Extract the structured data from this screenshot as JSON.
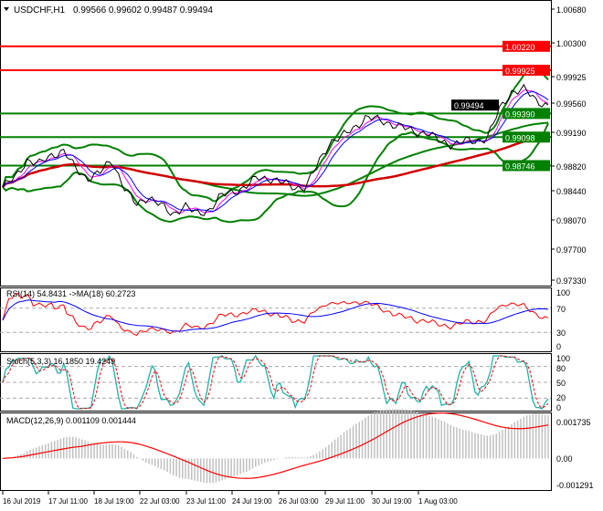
{
  "header": {
    "symbol": "USDCHF,H1",
    "ohlc": "0.99566 0.99602 0.99487 0.99494"
  },
  "colors": {
    "resistance": "#ff0000",
    "support": "#008000",
    "price_tag": "#000000",
    "bollinger": "#008000",
    "rsi": "#ff0000",
    "rsi_ma": "#0000ff",
    "stoch_main": "#20b2aa",
    "stoch_signal": "#ff0000",
    "macd_hist": "#c0c0c0",
    "macd_signal": "#ff0000"
  },
  "chart_data": [
    {
      "type": "line",
      "title": "USDCHF,H1",
      "ylim": [
        0.9733,
        1.0068
      ],
      "y_ticks": [
        "1.00680",
        "1.00300",
        "0.99925",
        "0.99560",
        "0.99190",
        "0.98820",
        "0.98440",
        "0.98070",
        "0.97700",
        "0.97330"
      ],
      "x_ticks": [
        "16 Jul 2019",
        "17 Jul 11:00",
        "18 Jul 19:00",
        "22 Jul 03:00",
        "23 Jul 11:00",
        "24 Jul 19:00",
        "26 Jul 03:00",
        "29 Jul 11:00",
        "30 Jul 19:00",
        "1 Aug 03:00"
      ],
      "close": [
        0.9848,
        0.98593,
        0.98819,
        0.98762,
        0.98875,
        0.98932,
        0.98706,
        0.98593,
        0.9865,
        0.98819,
        0.9848,
        0.98255,
        0.98368,
        0.98255,
        0.98142,
        0.98255,
        0.98142,
        0.98198,
        0.98368,
        0.98424,
        0.9848,
        0.98593,
        0.98593,
        0.98537,
        0.9848,
        0.9848,
        0.98762,
        0.99044,
        0.99101,
        0.99214,
        0.99349,
        0.99304,
        0.9927,
        0.99214,
        0.99157,
        0.99157,
        0.99044,
        0.99011,
        0.99044,
        0.99044,
        0.99101,
        0.99439,
        0.99665,
        0.99687,
        0.99552,
        0.99494
      ],
      "levels": [
        {
          "value": "1.00220",
          "kind": "resistance"
        },
        {
          "value": "0.99925",
          "kind": "resistance"
        },
        {
          "value": "0.99390",
          "kind": "support"
        },
        {
          "value": "0.99098",
          "kind": "support"
        },
        {
          "value": "0.98746",
          "kind": "support"
        }
      ],
      "current_price": "0.99494"
    },
    {
      "type": "line",
      "title": "RSI(14) 54.8431   ->MA(18) 60.2723",
      "ylim": [
        0,
        100
      ],
      "y_ticks": [
        "100",
        "70",
        "30",
        "0"
      ]
    },
    {
      "type": "line",
      "title": "Stoch(5,3,3) 16.1850 19.4249",
      "ylim": [
        0,
        100
      ],
      "y_ticks": [
        "100",
        "80",
        "50",
        "20",
        "0"
      ]
    },
    {
      "type": "bar",
      "title": "MACD(12,26,9) 0.001109 0.001444",
      "ylim": [
        -0.001291,
        0.001735
      ],
      "y_ticks": [
        "0.001735",
        "0.00",
        "-0.001291"
      ]
    }
  ]
}
